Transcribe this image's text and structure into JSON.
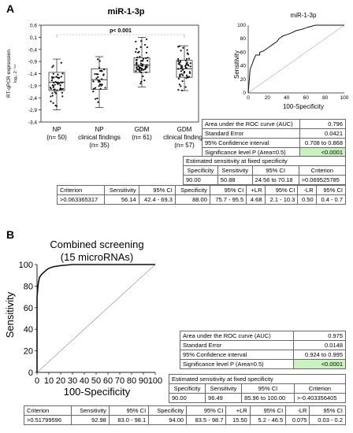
{
  "panelA": {
    "letter": "A",
    "box": {
      "title": "miR-1-3p",
      "ylabel_main": "RT-qPCR expression",
      "ylabel_sub": "log₁₀ 2⁻ᐞᶜᵗ",
      "yticks": [
        "0,6",
        "0,1",
        "-0,4",
        "-0,9",
        "-1,4",
        "-1,9",
        "-2,4",
        "-2,9",
        "-3,4"
      ],
      "pvalue": "p< 0.001",
      "groups": [
        {
          "line1": "NP",
          "line2": "",
          "line3": "(n= 50)"
        },
        {
          "line1": "NP",
          "line2": "clinical findings",
          "line3": "(n= 35)"
        },
        {
          "line1": "GDM",
          "line2": "",
          "line3": "(n= 61)"
        },
        {
          "line1": "GDM",
          "line2": "clinical findings",
          "line3": "(n= 57)"
        }
      ]
    },
    "roc": {
      "title": "miR-1-3p",
      "xlabel": "100-Specificity",
      "ylabel": "Sensitivity",
      "ticks": [
        "0",
        "20",
        "40",
        "60",
        "80",
        "100"
      ]
    },
    "auc_table": [
      {
        "label": "Area under the ROC curve (AUC)",
        "value": "0.796"
      },
      {
        "label": "Standard Error",
        "value": "0.0421"
      },
      {
        "label": "95% Confidence interval",
        "value": "0.708 to 0.868"
      },
      {
        "label": "Significance level P (Area=0.5)",
        "value": "<0.0001"
      }
    ],
    "sens_table": {
      "title": "Estimated sensitivity at fixed specificity",
      "headers": [
        "Specificity",
        "Sensitivity",
        "95% CI",
        "Criterion"
      ],
      "row": [
        "90.00",
        "50.88",
        "24.56 to 70.18",
        ">0.069525785"
      ]
    },
    "crit_table": {
      "headers": [
        "Criterion",
        "Sensitivity",
        "95% CI",
        "Specificity",
        "95% CI",
        "+LR",
        "95% CI",
        "-LR",
        "95% CI"
      ],
      "row": [
        ">0.063365317",
        "56.14",
        "42.4 - 69.3",
        "88.00",
        "75.7 - 95.5",
        "4.68",
        "2.1 - 10.3",
        "0.50",
        "0.4 - 0.7"
      ]
    }
  },
  "panelB": {
    "letter": "B",
    "roc": {
      "title_line1": "Combined screening",
      "title_line2": "(15 microRNAs)",
      "xlabel": "100-Specificity",
      "ylabel": "Sensitivity",
      "ticks": [
        "0",
        "10",
        "20",
        "30",
        "40",
        "50",
        "60",
        "70",
        "80",
        "90",
        "100"
      ],
      "yticks": [
        "0",
        "20",
        "40",
        "60",
        "80",
        "100"
      ]
    },
    "auc_table": [
      {
        "label": "Area under the ROC curve (AUC)",
        "value": "0.975"
      },
      {
        "label": "Standard Error",
        "value": "0.0148"
      },
      {
        "label": "95% Confidence interval",
        "value": "0.924 to 0.995"
      },
      {
        "label": "Significance level P (Area=0.5)",
        "value": "<0.0001"
      }
    ],
    "sens_table": {
      "title": "Estimated sensitivity at fixed specificity",
      "headers": [
        "Specificity",
        "Sensitivity",
        "95% CI",
        "Criterion"
      ],
      "row": [
        "90.00",
        "96.49",
        "85.96 to 100.00",
        ">-0.403356405"
      ]
    },
    "crit_table": {
      "headers": [
        "Criterion",
        "Sensitivity",
        "95% CI",
        "Specificity",
        "95% CI",
        "+LR",
        "95% CI",
        "-LR",
        "95% CI"
      ],
      "row": [
        ">0.51799596",
        "92.98",
        "83.0 - 98.1",
        "94.00",
        "83.5 - 98.7",
        "15.50",
        "5.2 - 46.5",
        "0.075",
        "0.03 - 0.2"
      ]
    }
  },
  "chart_data": [
    {
      "type": "box",
      "title": "miR-1-3p",
      "categories": [
        "NP",
        "NP clinical findings",
        "GDM",
        "GDM clinical findings"
      ],
      "ylim": [
        -3.4,
        0.6
      ],
      "boxes": [
        {
          "min": -2.9,
          "q1": -2.1,
          "median": -1.75,
          "q3": -1.35,
          "max": -0.8
        },
        {
          "min": -2.8,
          "q1": -2.05,
          "median": -1.65,
          "q3": -1.2,
          "max": -0.7
        },
        {
          "min": -1.95,
          "q1": -1.35,
          "median": -1.05,
          "q3": -0.75,
          "max": 0.1
        },
        {
          "min": -2.1,
          "q1": -1.55,
          "median": -1.2,
          "q3": -0.85,
          "max": -0.25
        }
      ],
      "annotation": "p< 0.001"
    },
    {
      "type": "line",
      "title": "miR-1-3p",
      "xlabel": "100-Specificity",
      "ylabel": "Sensitivity",
      "xlim": [
        0,
        100
      ],
      "ylim": [
        0,
        100
      ],
      "x": [
        0,
        2,
        4,
        6,
        8,
        12,
        12,
        16,
        20,
        22,
        24,
        26,
        30,
        32,
        36,
        40,
        44,
        50,
        56,
        62,
        70,
        100
      ],
      "y": [
        0,
        35,
        42,
        50,
        56,
        56,
        60,
        62,
        66,
        68,
        70,
        72,
        76,
        80,
        84,
        86,
        88,
        92,
        94,
        97,
        100,
        100
      ]
    },
    {
      "type": "line",
      "title": "Combined screening (15 microRNAs)",
      "xlabel": "100-Specificity",
      "ylabel": "Sensitivity",
      "xlim": [
        0,
        100
      ],
      "ylim": [
        0,
        100
      ],
      "x": [
        0,
        0,
        1,
        2,
        4,
        6,
        8,
        10,
        14,
        20,
        30,
        100
      ],
      "y": [
        0,
        70,
        82,
        88,
        91,
        93,
        95,
        96.5,
        98,
        99,
        100,
        100
      ]
    }
  ]
}
